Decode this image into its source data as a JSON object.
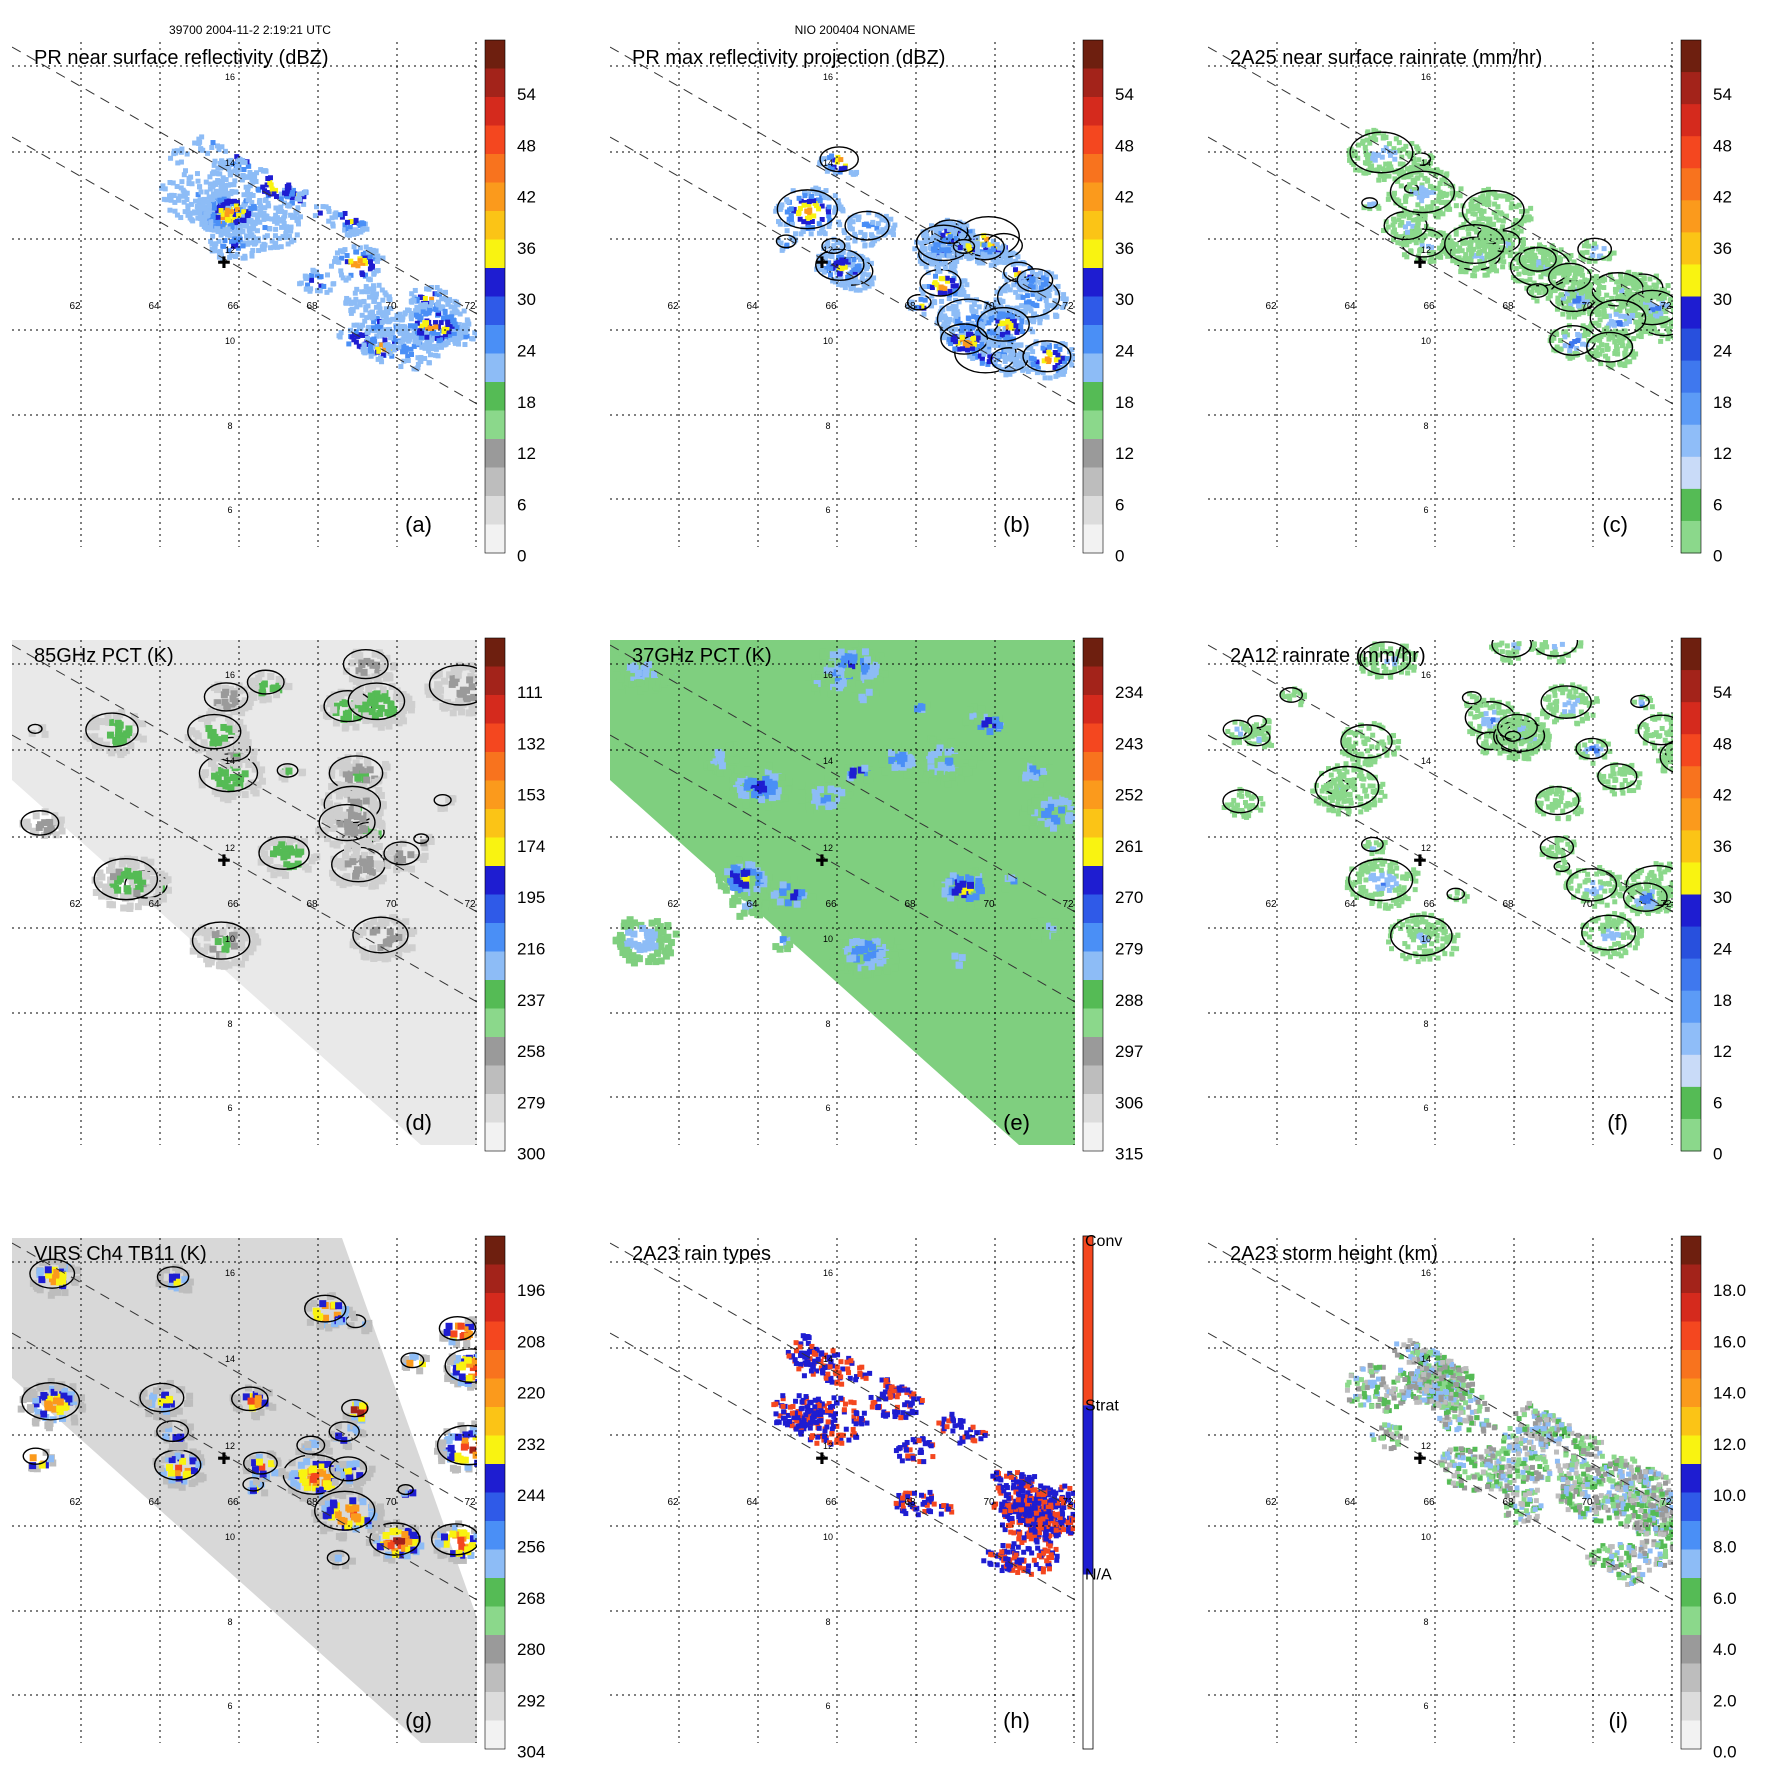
{
  "header": {
    "orbit_info": "39700 2004-11-2 2:19:21 UTC",
    "storm_info": "NIO 200404 NONAME"
  },
  "x_ticks": [
    "62",
    "64",
    "66",
    "68",
    "70",
    "72"
  ],
  "y_ticks": [
    "16",
    "14",
    "12",
    "10",
    "8",
    "6"
  ],
  "colorbars": {
    "dbz": {
      "labels": [
        "54",
        "48",
        "42",
        "36",
        "30",
        "24",
        "18",
        "12",
        "6",
        "0"
      ],
      "colors": [
        "#6e1f0f",
        "#a3231a",
        "#d52a1d",
        "#f4471f",
        "#f8731e",
        "#fb9a1c",
        "#fbc416",
        "#f9f311",
        "#1e1dd1",
        "#2f5ae8",
        "#4a8ff6",
        "#8dbcf6",
        "#55bb55",
        "#8bd88b",
        "#9a9a9a",
        "#bdbdbd",
        "#dcdcdc",
        "#f2f2f2"
      ]
    },
    "rain": {
      "labels": [
        "54",
        "48",
        "42",
        "36",
        "30",
        "24",
        "18",
        "12",
        "6",
        "0"
      ],
      "colors": [
        "#6e1f0f",
        "#a3231a",
        "#d52a1d",
        "#f4471f",
        "#f8731e",
        "#fb9a1c",
        "#fbc416",
        "#f9f311",
        "#1e1dd1",
        "#2850dd",
        "#3f78ee",
        "#5c9bf6",
        "#8fbdf8",
        "#c9dbf8",
        "#55bb55",
        "#8bd88b"
      ]
    },
    "pct85": {
      "labels": [
        "111",
        "132",
        "153",
        "174",
        "195",
        "216",
        "237",
        "258",
        "279",
        "300"
      ],
      "colors": [
        "#6e1f0f",
        "#a3231a",
        "#d52a1d",
        "#f4471f",
        "#f8731e",
        "#fb9a1c",
        "#fbc416",
        "#f9f311",
        "#1e1dd1",
        "#2f5ae8",
        "#4a8ff6",
        "#8dbcf6",
        "#55bb55",
        "#8bd88b",
        "#9a9a9a",
        "#bdbdbd",
        "#dcdcdc",
        "#f2f2f2"
      ]
    },
    "pct37": {
      "labels": [
        "234",
        "243",
        "252",
        "261",
        "270",
        "279",
        "288",
        "297",
        "306",
        "315"
      ],
      "colors": [
        "#6e1f0f",
        "#a3231a",
        "#d52a1d",
        "#f4471f",
        "#f8731e",
        "#fb9a1c",
        "#fbc416",
        "#f9f311",
        "#1e1dd1",
        "#2f5ae8",
        "#4a8ff6",
        "#8dbcf6",
        "#55bb55",
        "#8bd88b",
        "#9a9a9a",
        "#bdbdbd",
        "#dcdcdc",
        "#f2f2f2"
      ]
    },
    "ir": {
      "labels": [
        "196",
        "208",
        "220",
        "232",
        "244",
        "256",
        "268",
        "280",
        "292",
        "304"
      ],
      "colors": [
        "#6e1f0f",
        "#a3231a",
        "#d52a1d",
        "#f4471f",
        "#f8731e",
        "#fb9a1c",
        "#fbc416",
        "#f9f311",
        "#1e1dd1",
        "#2f5ae8",
        "#4a8ff6",
        "#8dbcf6",
        "#55bb55",
        "#8bd88b",
        "#9a9a9a",
        "#bdbdbd",
        "#dcdcdc",
        "#f2f2f2"
      ]
    },
    "types": {
      "labels": [
        "Conv",
        "Strat",
        "N/A"
      ],
      "colors": [
        "#f4471f",
        "#1e1dd1",
        "#ffffff"
      ]
    },
    "height": {
      "labels": [
        "18.0",
        "16.0",
        "14.0",
        "12.0",
        "10.0",
        "8.0",
        "6.0",
        "4.0",
        "2.0",
        "0.0"
      ],
      "colors": [
        "#6e1f0f",
        "#a3231a",
        "#d52a1d",
        "#f4471f",
        "#f8731e",
        "#fb9a1c",
        "#fbc416",
        "#f9f311",
        "#1e1dd1",
        "#2f5ae8",
        "#4a8ff6",
        "#8dbcf6",
        "#55bb55",
        "#8bd88b",
        "#9a9a9a",
        "#bdbdbd",
        "#dcdcdc",
        "#f2f2f2"
      ]
    }
  },
  "chart_data": [
    {
      "id": "a",
      "type": "heatmap",
      "title": "PR near surface reflectivity (dBZ)",
      "panel_label": "(a)",
      "colorbar": "dbz",
      "field": "swath",
      "range": [
        0,
        60
      ],
      "xlim": [
        61,
        73
      ],
      "ylim": [
        5,
        17
      ]
    },
    {
      "id": "b",
      "type": "heatmap",
      "title": "PR max reflectivity projection (dBZ)",
      "panel_label": "(b)",
      "colorbar": "dbz",
      "field": "swath",
      "range": [
        0,
        60
      ],
      "xlim": [
        61,
        73
      ],
      "ylim": [
        5,
        17
      ]
    },
    {
      "id": "c",
      "type": "heatmap",
      "title": "2A25 near surface rainrate (mm/hr)",
      "panel_label": "(c)",
      "colorbar": "rain",
      "field": "swath",
      "range": [
        0,
        60
      ],
      "xlim": [
        61,
        73
      ],
      "ylim": [
        5,
        17
      ]
    },
    {
      "id": "d",
      "type": "heatmap",
      "title": "85GHz PCT (K)",
      "panel_label": "(d)",
      "colorbar": "pct85",
      "field": "wide",
      "range": [
        90,
        300
      ],
      "xlim": [
        61,
        73
      ],
      "ylim": [
        5,
        17
      ]
    },
    {
      "id": "e",
      "type": "heatmap",
      "title": "37GHz PCT (K)",
      "panel_label": "(e)",
      "colorbar": "pct37",
      "field": "wide",
      "range": [
        225,
        315
      ],
      "xlim": [
        61,
        73
      ],
      "ylim": [
        5,
        17
      ]
    },
    {
      "id": "f",
      "type": "heatmap",
      "title": "2A12 rainrate (mm/hr)",
      "panel_label": "(f)",
      "colorbar": "rain",
      "field": "disk",
      "range": [
        0,
        60
      ],
      "xlim": [
        61,
        73
      ],
      "ylim": [
        5,
        17
      ]
    },
    {
      "id": "g",
      "type": "heatmap",
      "title": "VIRS Ch4 TB11 (K)",
      "panel_label": "(g)",
      "colorbar": "ir",
      "field": "wide",
      "range": [
        184,
        304
      ],
      "xlim": [
        61,
        73
      ],
      "ylim": [
        5,
        17
      ]
    },
    {
      "id": "h",
      "type": "heatmap",
      "title": "2A23 rain types",
      "panel_label": "(h)",
      "colorbar": "types",
      "field": "swath",
      "categories": [
        "Conv",
        "Strat",
        "N/A"
      ],
      "xlim": [
        61,
        73
      ],
      "ylim": [
        5,
        17
      ]
    },
    {
      "id": "i",
      "type": "heatmap",
      "title": "2A23 storm height (km)",
      "panel_label": "(i)",
      "colorbar": "height",
      "field": "swath",
      "range": [
        0,
        20
      ],
      "xlim": [
        61,
        73
      ],
      "ylim": [
        5,
        17
      ]
    }
  ]
}
